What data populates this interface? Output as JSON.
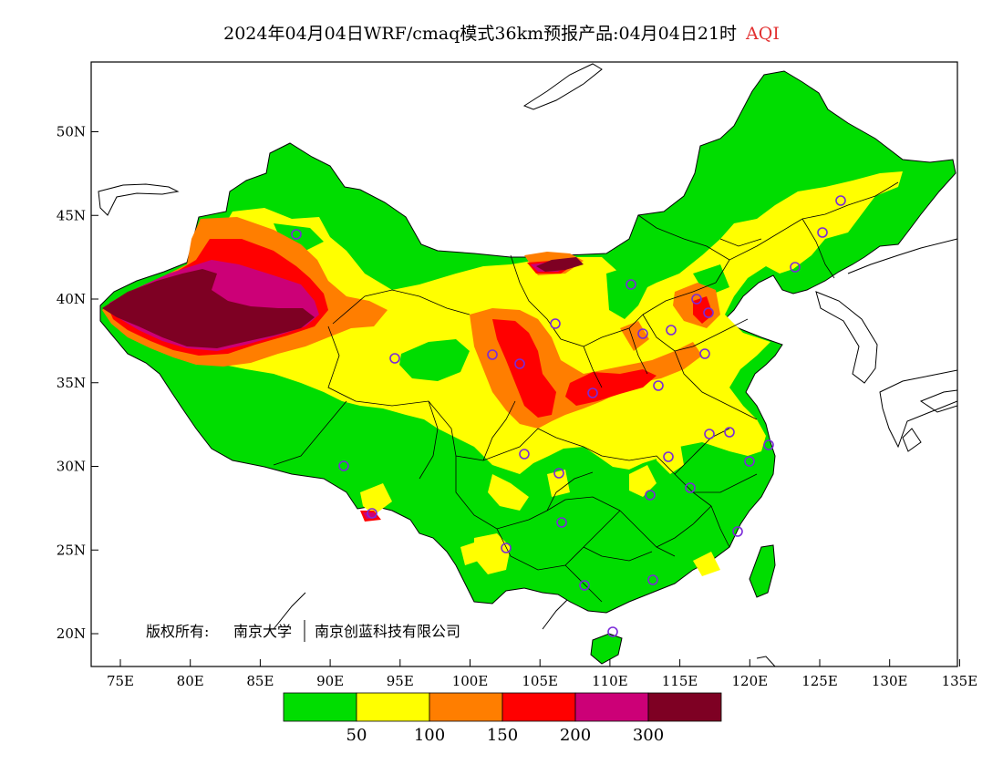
{
  "title": {
    "main": "2024年04月04日WRF/cmaq模式36km预报产品:04月04日21时",
    "variable": "AQI"
  },
  "axes": {
    "lat_ticks": [
      "20N",
      "25N",
      "30N",
      "35N",
      "40N",
      "45N",
      "50N"
    ],
    "lon_ticks": [
      "75E",
      "80E",
      "85E",
      "90E",
      "95E",
      "100E",
      "105E",
      "110E",
      "115E",
      "120E",
      "125E",
      "130E",
      "135E"
    ],
    "lon_range": [
      73,
      135
    ],
    "lat_range": [
      18,
      54
    ]
  },
  "copyright": {
    "prefix": "版权所有:",
    "org1": "南京大学",
    "org2": "南京创蓝科技有限公司"
  },
  "legend": {
    "thresholds": [
      "50",
      "100",
      "150",
      "200",
      "300"
    ],
    "colors": [
      "#00dd00",
      "#ffff00",
      "#ff7e00",
      "#ff0000",
      "#cc0077",
      "#7e0023"
    ]
  },
  "colors": {
    "ocean": "#ffffff",
    "land_outline": "#000000",
    "station_marker": "#7a2ad8"
  }
}
